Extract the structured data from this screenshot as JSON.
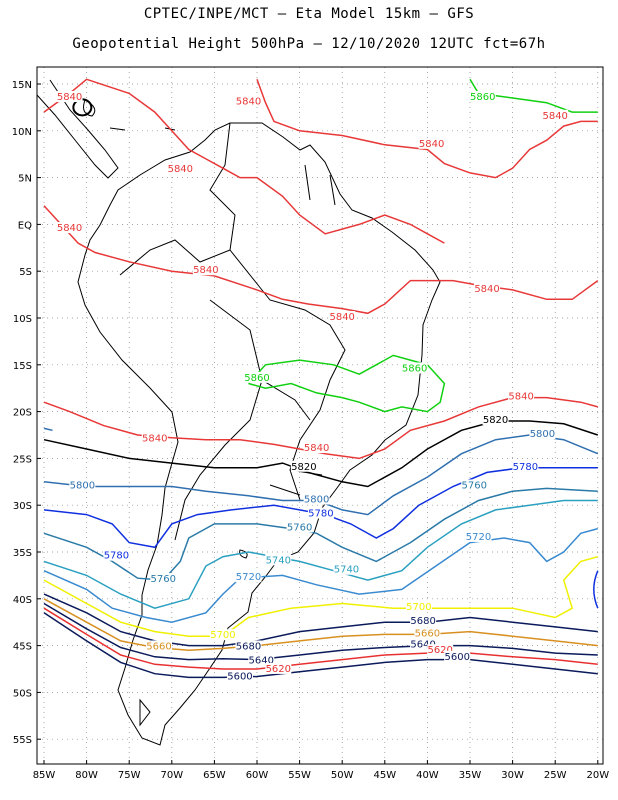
{
  "header": {
    "line1": "CPTEC/INPE/MCT –  Eta Model 15km – GFS",
    "line2": "Geopotential Height 500hPa – 12/10/2020 12UTC fct=67h"
  },
  "axes": {
    "lat_labels": [
      "15N",
      "10N",
      "5N",
      "EQ",
      "5S",
      "10S",
      "15S",
      "20S",
      "25S",
      "30S",
      "35S",
      "40S",
      "45S",
      "50S",
      "55S"
    ],
    "lon_labels": [
      "85W",
      "80W",
      "75W",
      "70W",
      "65W",
      "60W",
      "55W",
      "50W",
      "45W",
      "40W",
      "35W",
      "30W",
      "25W",
      "20W"
    ]
  },
  "colors": {
    "c5600": "#0a1a5a",
    "c5620": "#e83030",
    "c5660": "#d89020",
    "c5700": "#f0f000",
    "c5720": "#3a8ad0",
    "c5740": "#2aa0c0",
    "c5760": "#2a7aa8",
    "c5780": "#1030e0",
    "c5800": "#3070b0",
    "c5820": "#000000",
    "c5840": "#e83838",
    "c5860": "#10d010",
    "land": "#000000",
    "grid": "#888888"
  },
  "contour_labels": [
    {
      "text": "5840",
      "color": "c5840",
      "lon": -82.0,
      "lat": 13.5
    },
    {
      "text": "5840",
      "color": "c5840",
      "lon": -61.0,
      "lat": 13.0
    },
    {
      "text": "5840",
      "color": "c5840",
      "lon": -39.5,
      "lat": 8.5
    },
    {
      "text": "5840",
      "color": "c5840",
      "lon": -69.0,
      "lat": 5.8
    },
    {
      "text": "5840",
      "color": "c5840",
      "lon": -25.0,
      "lat": 11.5
    },
    {
      "text": "5860",
      "color": "c5860",
      "lon": -33.5,
      "lat": 13.5
    },
    {
      "text": "5840",
      "color": "c5840",
      "lon": -82.0,
      "lat": -0.5
    },
    {
      "text": "5840",
      "color": "c5840",
      "lon": -66.0,
      "lat": -5.0
    },
    {
      "text": "5840",
      "color": "c5840",
      "lon": -50.0,
      "lat": -10.0
    },
    {
      "text": "5840",
      "color": "c5840",
      "lon": -33.0,
      "lat": -7.0
    },
    {
      "text": "5860",
      "color": "c5860",
      "lon": -60.0,
      "lat": -16.5
    },
    {
      "text": "5860",
      "color": "c5860",
      "lon": -41.5,
      "lat": -15.5
    },
    {
      "text": "5840",
      "color": "c5840",
      "lon": -29.0,
      "lat": -18.5
    },
    {
      "text": "5820",
      "color": "c5820",
      "lon": -32.0,
      "lat": -21.0
    },
    {
      "text": "5800",
      "color": "c5800",
      "lon": -26.5,
      "lat": -22.5
    },
    {
      "text": "5840",
      "color": "c5840",
      "lon": -72.0,
      "lat": -23.0
    },
    {
      "text": "5840",
      "color": "c5840",
      "lon": -53.0,
      "lat": -24.0
    },
    {
      "text": "5820",
      "color": "c5820",
      "lon": -54.5,
      "lat": -26.0
    },
    {
      "text": "5780",
      "color": "c5780",
      "lon": -28.5,
      "lat": -26.0
    },
    {
      "text": "5760",
      "color": "c5760",
      "lon": -34.5,
      "lat": -28.0
    },
    {
      "text": "5800",
      "color": "c5800",
      "lon": -80.5,
      "lat": -28.0
    },
    {
      "text": "5800",
      "color": "c5800",
      "lon": -53.0,
      "lat": -29.5
    },
    {
      "text": "5780",
      "color": "c5780",
      "lon": -52.5,
      "lat": -31.0
    },
    {
      "text": "5760",
      "color": "c5760",
      "lon": -55.0,
      "lat": -32.5
    },
    {
      "text": "5720",
      "color": "c5720",
      "lon": -34.0,
      "lat": -33.5
    },
    {
      "text": "5780",
      "color": "c5780",
      "lon": -76.5,
      "lat": -35.5
    },
    {
      "text": "5740",
      "color": "c5740",
      "lon": -57.5,
      "lat": -36.0
    },
    {
      "text": "5740",
      "color": "c5740",
      "lon": -49.5,
      "lat": -37.0
    },
    {
      "text": "5760",
      "color": "c5760",
      "lon": -71.0,
      "lat": -38.0
    },
    {
      "text": "5720",
      "color": "c5720",
      "lon": -61.0,
      "lat": -37.8
    },
    {
      "text": "5700",
      "color": "c5700",
      "lon": -41.0,
      "lat": -41.0
    },
    {
      "text": "5680",
      "color": "c5600",
      "lon": -40.5,
      "lat": -42.5
    },
    {
      "text": "5700",
      "color": "c5700",
      "lon": -64.0,
      "lat": -44.0
    },
    {
      "text": "5660",
      "color": "c5660",
      "lon": -40.0,
      "lat": -43.8
    },
    {
      "text": "5640",
      "color": "c5600",
      "lon": -40.5,
      "lat": -45.0
    },
    {
      "text": "5660",
      "color": "c5660",
      "lon": -71.5,
      "lat": -45.2
    },
    {
      "text": "5680",
      "color": "c5600",
      "lon": -61.0,
      "lat": -45.2
    },
    {
      "text": "5620",
      "color": "c5620",
      "lon": -38.5,
      "lat": -45.6
    },
    {
      "text": "5600",
      "color": "c5600",
      "lon": -36.5,
      "lat": -46.3
    },
    {
      "text": "5640",
      "color": "c5600",
      "lon": -59.5,
      "lat": -46.7
    },
    {
      "text": "5620",
      "color": "c5620",
      "lon": -57.5,
      "lat": -47.6
    },
    {
      "text": "5600",
      "color": "c5600",
      "lon": -62.0,
      "lat": -48.4
    }
  ]
}
